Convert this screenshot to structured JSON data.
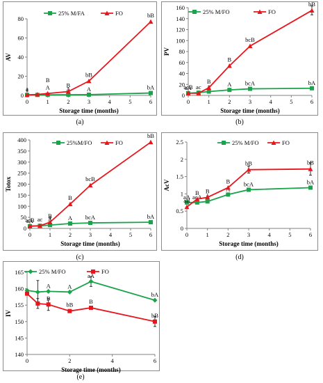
{
  "colors": {
    "mfo": "#1aa34a",
    "fo": "#e8161c",
    "axis": "#808080"
  },
  "chart_data": [
    {
      "id": "a",
      "type": "line",
      "panel_label": "(a)",
      "xlabel": "Storage time (months)",
      "ylabel": "AV",
      "xlim": [
        0,
        6
      ],
      "ylim": [
        0,
        80
      ],
      "xticks": [
        0,
        1,
        2,
        3,
        4,
        5,
        6
      ],
      "yticks": [
        0,
        20,
        40,
        60,
        80
      ],
      "series": [
        {
          "name": "25% M/FA",
          "key": "mfo",
          "marker": "square",
          "x": [
            0,
            0.5,
            1,
            2,
            3,
            6
          ],
          "y": [
            0.5,
            0.5,
            0.6,
            0.7,
            0.8,
            2.5
          ],
          "labels": [
            {
              "i": 0,
              "t": "a"
            },
            {
              "i": 3,
              "t": "A"
            },
            {
              "i": 4,
              "t": "A"
            },
            {
              "i": 5,
              "t": "bA"
            }
          ]
        },
        {
          "name": "FO",
          "key": "fo",
          "marker": "triangle",
          "x": [
            0,
            0.5,
            1,
            2,
            3,
            6
          ],
          "y": [
            0.5,
            1,
            2,
            4,
            15,
            77
          ],
          "labels": [
            {
              "i": 0,
              "t": "a"
            },
            {
              "i": 2,
              "t": "A"
            },
            {
              "i": 3,
              "t": "B"
            },
            {
              "i": 4,
              "t": "bB"
            },
            {
              "i": 5,
              "t": "bB"
            }
          ]
        }
      ],
      "extra_labels": [
        {
          "x": 1,
          "y": 14,
          "t": "B"
        }
      ]
    },
    {
      "id": "b",
      "type": "line",
      "panel_label": "(b)",
      "xlabel": "Storage time (months)",
      "ylabel": "PV",
      "xlim": [
        0,
        6
      ],
      "ylim": [
        0,
        160
      ],
      "xticks": [
        0,
        1,
        2,
        3,
        4,
        5,
        6
      ],
      "yticks": [
        0,
        20,
        40,
        60,
        80,
        100,
        120,
        140,
        160
      ],
      "series": [
        {
          "name": "25% M/FO",
          "key": "mfo",
          "marker": "square",
          "x": [
            0,
            0.5,
            1,
            2,
            3,
            6
          ],
          "y": [
            4,
            5,
            7,
            10,
            12,
            13
          ],
          "labels": [
            {
              "i": 0,
              "t": "aA"
            },
            {
              "i": 2,
              "t": "a"
            },
            {
              "i": 3,
              "t": "A"
            },
            {
              "i": 4,
              "t": "bcA"
            },
            {
              "i": 5,
              "t": "bA"
            }
          ]
        },
        {
          "name": "FO",
          "key": "fo",
          "marker": "triangle",
          "x": [
            0,
            0.5,
            1,
            2,
            3,
            6
          ],
          "y": [
            4,
            4,
            14,
            54,
            90,
            155
          ],
          "labels": [
            {
              "i": 0,
              "t": "acB"
            },
            {
              "i": 1,
              "t": "ac"
            },
            {
              "i": 2,
              "t": "B"
            },
            {
              "i": 3,
              "t": "B"
            },
            {
              "i": 4,
              "t": "bcB"
            },
            {
              "i": 5,
              "t": "bB"
            }
          ]
        }
      ],
      "error_bars": [
        {
          "s": 1,
          "i": 5,
          "e": 8
        }
      ]
    },
    {
      "id": "c",
      "type": "line",
      "panel_label": "(c)",
      "xlabel": "Storage time (months)",
      "ylabel": "Totox",
      "xlim": [
        0,
        6
      ],
      "ylim": [
        0,
        400
      ],
      "xticks": [
        0,
        1,
        2,
        3,
        4,
        5,
        6
      ],
      "yticks": [
        0,
        50,
        100,
        150,
        200,
        250,
        300,
        350,
        400
      ],
      "series": [
        {
          "name": "25%M/FO",
          "key": "mfo",
          "marker": "square",
          "x": [
            0,
            0.5,
            1,
            2,
            3,
            6
          ],
          "y": [
            10,
            12,
            15,
            22,
            25,
            28
          ],
          "labels": [
            {
              "i": 0,
              "t": "aA"
            },
            {
              "i": 2,
              "t": "A"
            },
            {
              "i": 3,
              "t": "A"
            },
            {
              "i": 4,
              "t": "bcA"
            },
            {
              "i": 5,
              "t": "bA"
            }
          ]
        },
        {
          "name": "FO",
          "key": "fo",
          "marker": "triangle",
          "x": [
            0,
            0.5,
            1,
            2,
            3,
            6
          ],
          "y": [
            10,
            12,
            28,
            110,
            195,
            390
          ],
          "labels": [
            {
              "i": 0,
              "t": "acB"
            },
            {
              "i": 1,
              "t": "ac"
            },
            {
              "i": 2,
              "t": "B"
            },
            {
              "i": 3,
              "t": "B"
            },
            {
              "i": 4,
              "t": "bcB"
            },
            {
              "i": 5,
              "t": "bB"
            }
          ]
        }
      ],
      "extra_labels": [
        {
          "x": 1,
          "y": 42,
          "t": "a"
        }
      ]
    },
    {
      "id": "d",
      "type": "line",
      "panel_label": "(d)",
      "xlabel": "Storage time (months)",
      "ylabel": "AcV",
      "xlim": [
        0,
        6
      ],
      "ylim": [
        0,
        2.5
      ],
      "xticks": [
        0,
        1,
        2,
        3,
        4,
        5,
        6
      ],
      "yticks": [
        0,
        0.5,
        1,
        1.5,
        2,
        2.5
      ],
      "series": [
        {
          "name": "25% M/FO",
          "key": "mfo",
          "marker": "square",
          "x": [
            0,
            0.5,
            1,
            2,
            3,
            6
          ],
          "y": [
            0.75,
            0.75,
            0.78,
            0.98,
            1.12,
            1.18
          ],
          "labels": [
            {
              "i": 0,
              "t": "aA"
            },
            {
              "i": 1,
              "t": "acA"
            },
            {
              "i": 2,
              "t": "A"
            },
            {
              "i": 3,
              "t": "A"
            },
            {
              "i": 4,
              "t": "bcA"
            },
            {
              "i": 5,
              "t": "bA"
            }
          ]
        },
        {
          "name": "FO",
          "key": "fo",
          "marker": "triangle",
          "x": [
            0,
            0.5,
            1,
            2,
            3,
            6
          ],
          "y": [
            0.62,
            0.85,
            0.9,
            1.18,
            1.7,
            1.72
          ],
          "labels": [
            {
              "i": 0,
              "t": "aB"
            },
            {
              "i": 1,
              "t": "B"
            },
            {
              "i": 2,
              "t": "B"
            },
            {
              "i": 3,
              "t": "B"
            },
            {
              "i": 4,
              "t": "bB"
            },
            {
              "i": 5,
              "t": "bB"
            }
          ]
        }
      ],
      "error_bars": [
        {
          "s": 1,
          "i": 4,
          "e": 0.1
        },
        {
          "s": 1,
          "i": 5,
          "e": 0.18
        },
        {
          "s": 0,
          "i": 4,
          "e": 0.05
        }
      ]
    },
    {
      "id": "e",
      "type": "line",
      "panel_label": "(e)",
      "xlabel": "Storage time (months)",
      "ylabel": "IV",
      "xlim": [
        0,
        6
      ],
      "ylim": [
        140,
        165
      ],
      "xticks": [
        0,
        2,
        4,
        6
      ],
      "yticks": [
        140,
        145,
        150,
        155,
        160,
        165
      ],
      "series": [
        {
          "name": "25% M/FO",
          "key": "mfo",
          "marker": "diamond",
          "x": [
            0,
            0.5,
            1,
            2,
            3,
            6
          ],
          "y": [
            159.5,
            159,
            159.2,
            159,
            162.2,
            156.5
          ],
          "labels": [
            {
              "i": 2,
              "t": "A"
            },
            {
              "i": 3,
              "t": "A"
            },
            {
              "i": 4,
              "t": "aA"
            },
            {
              "i": 5,
              "t": "bA"
            }
          ]
        },
        {
          "name": "FO",
          "key": "fo",
          "marker": "square",
          "x": [
            0,
            0.5,
            1,
            2,
            3,
            6
          ],
          "y": [
            158.5,
            155.5,
            155.2,
            153.2,
            154.2,
            150
          ],
          "labels": [
            {
              "i": 2,
              "t": "B"
            },
            {
              "i": 3,
              "t": "bB"
            },
            {
              "i": 4,
              "t": "B"
            },
            {
              "i": 5,
              "t": "bB"
            }
          ]
        }
      ],
      "error_bars": [
        {
          "s": 0,
          "i": 1,
          "e": 3.5
        },
        {
          "s": 1,
          "i": 1,
          "e": 1.5
        },
        {
          "s": 1,
          "i": 2,
          "e": 1.8
        },
        {
          "s": 0,
          "i": 4,
          "e": 1.5
        },
        {
          "s": 1,
          "i": 5,
          "e": 1.5
        }
      ]
    }
  ]
}
